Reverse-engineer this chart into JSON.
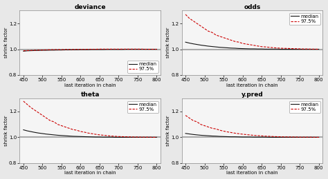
{
  "titles": [
    "deviance",
    "odds",
    "theta",
    "y.pred"
  ],
  "xlabel": "last iteration in chain",
  "ylabel": "shrink factor",
  "xlim": [
    440,
    810
  ],
  "ylim": [
    0.8,
    1.3
  ],
  "yticks": [
    0.8,
    1.0,
    1.2
  ],
  "xticks": [
    450,
    500,
    550,
    600,
    650,
    700,
    750,
    800
  ],
  "hline_y": 1.0,
  "hline_color": "#aaaaaa",
  "median_color": "#111111",
  "quantile_color": "#cc0000",
  "background_color": "#e8e8e8",
  "panel_bg": "#f5f5f5",
  "panels": {
    "deviance": {
      "median_x": [
        450,
        460,
        470,
        480,
        490,
        500,
        510,
        520,
        530,
        540,
        550,
        560,
        570,
        580,
        590,
        600,
        610,
        620,
        630,
        640,
        650,
        660,
        670,
        680,
        690,
        700,
        710,
        720,
        730,
        740,
        750,
        760,
        770,
        780,
        790,
        800
      ],
      "median_y": [
        0.985,
        0.988,
        0.989,
        0.99,
        0.991,
        0.992,
        0.992,
        0.993,
        0.993,
        0.994,
        0.994,
        0.995,
        0.995,
        0.996,
        0.996,
        0.997,
        0.997,
        0.997,
        0.998,
        0.998,
        0.998,
        0.998,
        0.999,
        0.999,
        0.999,
        0.999,
        0.999,
        1.0,
        1.0,
        1.0,
        1.0,
        1.0,
        1.0,
        1.0,
        1.0,
        1.0
      ],
      "q97_y": [
        0.988,
        0.99,
        0.991,
        0.992,
        0.993,
        0.994,
        0.995,
        0.996,
        0.997,
        0.997,
        0.997,
        0.998,
        0.998,
        0.998,
        0.999,
        0.999,
        0.999,
        1.0,
        1.0,
        1.0,
        1.001,
        1.001,
        1.001,
        1.001,
        1.001,
        1.001,
        1.001,
        1.001,
        1.001,
        1.001,
        1.001,
        1.001,
        1.0,
        1.0,
        1.0,
        1.0
      ],
      "legend_loc": "lower right"
    },
    "odds": {
      "median_x": [
        450,
        460,
        470,
        480,
        490,
        500,
        510,
        520,
        530,
        540,
        550,
        560,
        570,
        580,
        590,
        600,
        610,
        620,
        630,
        640,
        650,
        660,
        670,
        680,
        690,
        700,
        710,
        720,
        730,
        740,
        750,
        760,
        770,
        780,
        790,
        800
      ],
      "median_y": [
        1.055,
        1.048,
        1.042,
        1.037,
        1.032,
        1.028,
        1.024,
        1.021,
        1.018,
        1.015,
        1.013,
        1.011,
        1.009,
        1.008,
        1.006,
        1.005,
        1.004,
        1.003,
        1.003,
        1.002,
        1.002,
        1.001,
        1.001,
        1.001,
        1.001,
        1.0,
        1.0,
        1.0,
        1.0,
        1.0,
        1.0,
        1.0,
        1.0,
        1.0,
        1.0,
        1.0
      ],
      "q97_y": [
        1.27,
        1.24,
        1.22,
        1.2,
        1.18,
        1.16,
        1.14,
        1.13,
        1.11,
        1.1,
        1.09,
        1.08,
        1.07,
        1.06,
        1.055,
        1.045,
        1.04,
        1.035,
        1.03,
        1.025,
        1.02,
        1.018,
        1.015,
        1.012,
        1.01,
        1.008,
        1.007,
        1.006,
        1.005,
        1.004,
        1.003,
        1.002,
        1.002,
        1.001,
        1.001,
        1.0
      ],
      "legend_loc": "upper right"
    },
    "theta": {
      "median_x": [
        450,
        460,
        470,
        480,
        490,
        500,
        510,
        520,
        530,
        540,
        550,
        560,
        570,
        580,
        590,
        600,
        610,
        620,
        630,
        640,
        650,
        660,
        670,
        680,
        690,
        700,
        710,
        720,
        730,
        740,
        750,
        760,
        770,
        780,
        790,
        800
      ],
      "median_y": [
        1.058,
        1.05,
        1.044,
        1.038,
        1.033,
        1.029,
        1.025,
        1.022,
        1.019,
        1.016,
        1.014,
        1.012,
        1.01,
        1.008,
        1.007,
        1.006,
        1.005,
        1.004,
        1.003,
        1.002,
        1.002,
        1.001,
        1.001,
        1.001,
        1.0,
        1.0,
        1.0,
        1.0,
        1.0,
        1.0,
        1.0,
        1.0,
        1.0,
        1.0,
        1.0,
        1.0
      ],
      "q97_y": [
        1.28,
        1.255,
        1.23,
        1.21,
        1.19,
        1.17,
        1.15,
        1.13,
        1.12,
        1.1,
        1.09,
        1.08,
        1.07,
        1.06,
        1.055,
        1.045,
        1.04,
        1.033,
        1.028,
        1.023,
        1.019,
        1.016,
        1.013,
        1.01,
        1.008,
        1.006,
        1.005,
        1.004,
        1.003,
        1.002,
        1.002,
        1.001,
        1.001,
        1.001,
        1.0,
        1.0
      ],
      "legend_loc": "upper right"
    },
    "y.pred": {
      "median_x": [
        450,
        460,
        470,
        480,
        490,
        500,
        510,
        520,
        530,
        540,
        550,
        560,
        570,
        580,
        590,
        600,
        610,
        620,
        630,
        640,
        650,
        660,
        670,
        680,
        690,
        700,
        710,
        720,
        730,
        740,
        750,
        760,
        770,
        780,
        790,
        800
      ],
      "median_y": [
        1.03,
        1.026,
        1.022,
        1.019,
        1.016,
        1.014,
        1.012,
        1.01,
        1.009,
        1.007,
        1.006,
        1.005,
        1.004,
        1.004,
        1.003,
        1.002,
        1.002,
        1.002,
        1.001,
        1.001,
        1.001,
        1.001,
        1.0,
        1.0,
        1.0,
        1.0,
        1.0,
        1.0,
        1.0,
        1.0,
        1.0,
        1.0,
        1.0,
        1.0,
        1.0,
        1.0
      ],
      "q97_y": [
        1.17,
        1.15,
        1.13,
        1.12,
        1.1,
        1.09,
        1.08,
        1.07,
        1.065,
        1.055,
        1.048,
        1.042,
        1.037,
        1.032,
        1.028,
        1.024,
        1.021,
        1.018,
        1.015,
        1.013,
        1.011,
        1.009,
        1.008,
        1.006,
        1.005,
        1.004,
        1.003,
        1.003,
        1.002,
        1.002,
        1.001,
        1.001,
        1.001,
        1.001,
        1.0,
        1.0
      ],
      "legend_loc": "upper right"
    }
  },
  "median_lw": 0.8,
  "q97_lw": 0.8,
  "hline_lw": 1.5,
  "title_fontsize": 6.5,
  "axis_fontsize": 5.0,
  "tick_fontsize": 5.0,
  "legend_fontsize": 5.0,
  "figsize": [
    4.74,
    2.6
  ],
  "dpi": 100
}
